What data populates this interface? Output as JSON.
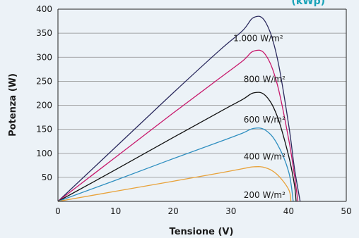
{
  "chart_data": {
    "type": "line",
    "title": "(kWp)",
    "xlabel": "Tensione (V)",
    "ylabel": "Potenza (W)",
    "xlim": [
      0,
      50
    ],
    "ylim": [
      0,
      400
    ],
    "xticks": [
      "0",
      "10",
      "20",
      "30",
      "40",
      "50"
    ],
    "yticks": [
      "50",
      "100",
      "150",
      "200",
      "250",
      "300",
      "350",
      "400"
    ],
    "grid": "horizontal",
    "accent_color": "#1aa3b8",
    "series": [
      {
        "name": "1.000 W/m²",
        "color": "#2b2a5e",
        "x": [
          0,
          10,
          20,
          28,
          32,
          34,
          36,
          38,
          40,
          41,
          42
        ],
        "y": [
          0,
          113,
          226,
          314,
          355,
          383,
          373,
          300,
          160,
          70,
          0
        ]
      },
      {
        "name": "800 W/m²",
        "color": "#c8196c",
        "x": [
          0,
          10,
          20,
          28,
          32,
          34,
          36,
          38,
          40,
          41,
          41.6
        ],
        "y": [
          0,
          92,
          184,
          256,
          292,
          313,
          305,
          245,
          130,
          55,
          0
        ]
      },
      {
        "name": "600 W/m²",
        "color": "#111111",
        "x": [
          0,
          10,
          20,
          28,
          32,
          34,
          36,
          38,
          40,
          41,
          41.3
        ],
        "y": [
          0,
          66,
          133,
          186,
          212,
          226,
          220,
          178,
          95,
          35,
          0
        ]
      },
      {
        "name": "400 W/m²",
        "color": "#2f8fc0",
        "x": [
          0,
          10,
          20,
          28,
          32,
          34,
          36,
          38,
          40,
          40.8
        ],
        "y": [
          0,
          44,
          89,
          124,
          142,
          152,
          148,
          120,
          62,
          0
        ]
      },
      {
        "name": "200 W/m²",
        "color": "#e8a23a",
        "x": [
          0,
          10,
          20,
          28,
          32,
          34,
          36,
          38,
          40,
          40.4
        ],
        "y": [
          0,
          21,
          42,
          59,
          68,
          72,
          70,
          56,
          25,
          0
        ]
      }
    ]
  }
}
